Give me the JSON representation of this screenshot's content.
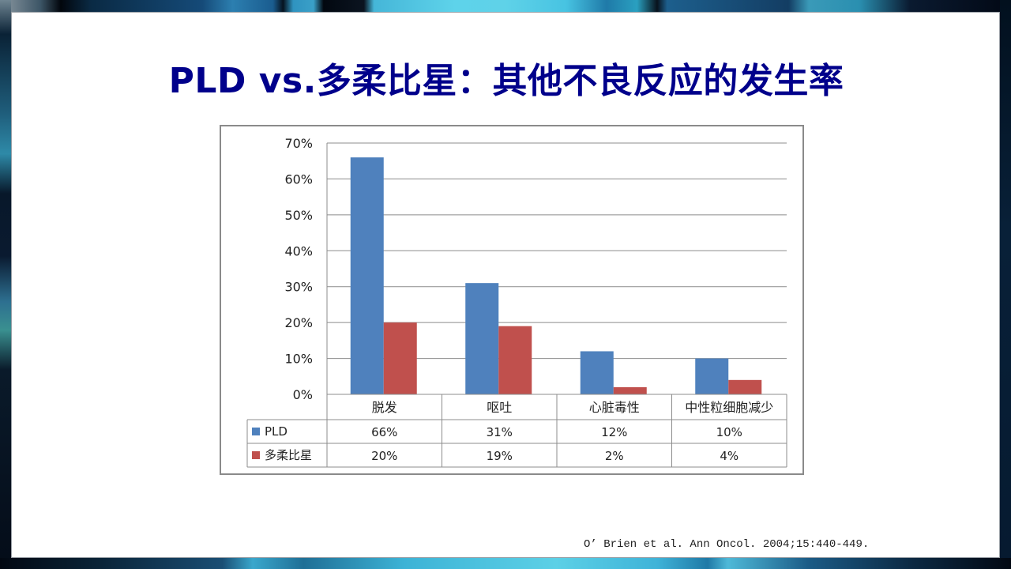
{
  "slide": {
    "title": "PLD vs.多柔比星：其他不良反应的发生率",
    "citation": "O’ Brien et al. Ann Oncol. 2004;15:440-449.",
    "colors": {
      "title": "#00008b",
      "series_pld": "#4f81bd",
      "series_doxorubicin": "#c0504d",
      "gridline": "#8c8c8c"
    }
  },
  "chart_data": {
    "type": "bar",
    "title": "",
    "xlabel": "",
    "ylabel": "",
    "categories": [
      "脱发",
      "呕吐",
      "心脏毒性",
      "中性粒细胞减少"
    ],
    "series": [
      {
        "name": "PLD",
        "color": "#4f81bd",
        "values": [
          66,
          31,
          12,
          10
        ],
        "labels": [
          "66%",
          "31%",
          "12%",
          "10%"
        ]
      },
      {
        "name": "多柔比星",
        "color": "#c0504d",
        "values": [
          20,
          19,
          2,
          4
        ],
        "labels": [
          "20%",
          "19%",
          "2%",
          "4%"
        ]
      }
    ],
    "ylim": [
      0,
      70
    ],
    "y_ticks": [
      "0%",
      "10%",
      "20%",
      "30%",
      "40%",
      "50%",
      "60%",
      "70%"
    ],
    "grid": true,
    "legend_position": "data-table",
    "data_table": true
  }
}
